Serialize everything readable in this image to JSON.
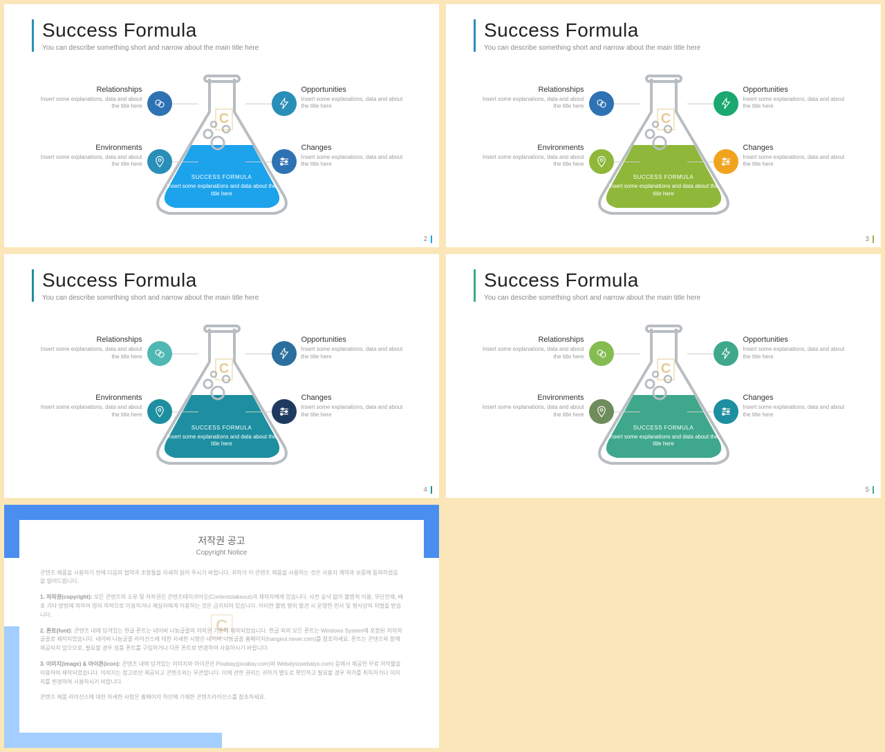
{
  "background_color": "#fae6b8",
  "slides": [
    {
      "page": "2",
      "title": "Success Formula",
      "subtitle": "You can describe something short and narrow about the main title here",
      "accent": "#1ca3ec",
      "header_bar": "#2a8fb8",
      "liquid": "#1ca3ec",
      "flask_stroke": "#b8bdc2",
      "flask_label": "SUCCESS FORMULA",
      "flask_desc": "Insert some explanations and data about the title here",
      "items": {
        "tl": {
          "title": "Relationships",
          "desc": "Insert some explanations, data and about the title here",
          "color": "#2f72b3",
          "icon": "chat"
        },
        "bl": {
          "title": "Environments",
          "desc": "Insert some explanations, data and about the title here",
          "color": "#2a8fb8",
          "icon": "pin"
        },
        "tr": {
          "title": "Opportunities",
          "desc": "Insert some explanations, data and about the title here",
          "color": "#2a8fb8",
          "icon": "bolt"
        },
        "br": {
          "title": "Changes",
          "desc": "Insert some explanations, data and about the title here",
          "color": "#2f72b3",
          "icon": "sliders"
        }
      }
    },
    {
      "page": "3",
      "title": "Success Formula",
      "subtitle": "You can describe something short and narrow about the main title here",
      "accent": "#8fb83a",
      "header_bar": "#2a8fb8",
      "liquid": "#8fb83a",
      "flask_stroke": "#b8bdc2",
      "flask_label": "SUCCESS FORMULA",
      "flask_desc": "Insert some explanations and data about the title here",
      "items": {
        "tl": {
          "title": "Relationships",
          "desc": "Insert some explanations, data and about the title here",
          "color": "#2f72b3",
          "icon": "chat"
        },
        "bl": {
          "title": "Environments",
          "desc": "Insert some explanations, data and about the title here",
          "color": "#8fb83a",
          "icon": "pin"
        },
        "tr": {
          "title": "Opportunities",
          "desc": "Insert some explanations, data and about the title here",
          "color": "#1aa86f",
          "icon": "bolt"
        },
        "br": {
          "title": "Changes",
          "desc": "Insert some explanations, data and about the title here",
          "color": "#f0a41e",
          "icon": "sliders"
        }
      }
    },
    {
      "page": "4",
      "title": "Success Formula",
      "subtitle": "You can describe something short and narrow about the main title here",
      "accent": "#1d8fa0",
      "header_bar": "#1d8fa0",
      "liquid": "#1d8fa0",
      "flask_stroke": "#b8bdc2",
      "flask_label": "SUCCESS FORMULA",
      "flask_desc": "Insert some explanations and data about the title here",
      "items": {
        "tl": {
          "title": "Relationships",
          "desc": "Insert some explanations, data and about the title here",
          "color": "#4fb8b3",
          "icon": "chat"
        },
        "bl": {
          "title": "Environments",
          "desc": "Insert some explanations, data and about the title here",
          "color": "#1d8fa0",
          "icon": "pin"
        },
        "tr": {
          "title": "Opportunities",
          "desc": "Insert some explanations, data and about the title here",
          "color": "#2a6f9e",
          "icon": "bolt"
        },
        "br": {
          "title": "Changes",
          "desc": "Insert some explanations, data and about the title here",
          "color": "#1f3a5f",
          "icon": "sliders"
        }
      }
    },
    {
      "page": "5",
      "title": "Success Formula",
      "subtitle": "You can describe something short and narrow about the main title here",
      "accent": "#3fa88c",
      "header_bar": "#3fa88c",
      "liquid": "#3fa88c",
      "flask_stroke": "#b8bdc2",
      "flask_label": "SUCCESS FORMULA",
      "flask_desc": "Insert some explanations and data about the title here",
      "items": {
        "tl": {
          "title": "Relationships",
          "desc": "Insert some explanations, data and about the title here",
          "color": "#84bc52",
          "icon": "chat"
        },
        "bl": {
          "title": "Environments",
          "desc": "Insert some explanations, data and about the title here",
          "color": "#6f8c5c",
          "icon": "pin"
        },
        "tr": {
          "title": "Opportunities",
          "desc": "Insert some explanations, data and about the title here",
          "color": "#3fa88c",
          "icon": "bolt"
        },
        "br": {
          "title": "Changes",
          "desc": "Insert some explanations, data and about the title here",
          "color": "#1d8fa0",
          "icon": "sliders"
        }
      }
    }
  ],
  "copyright": {
    "title": "저작권 공고",
    "subtitle": "Copyright Notice",
    "border_top": "#4a8ff0",
    "border_bottom": "#a3ceff",
    "p1": "콘텐츠 제품을 사용하기 전에 다음의 협약과 조항들을 자세히 읽어 주시기 바랍니다. 귀하가 이 콘텐츠 제품을 사용하는 것은 사용자 계약과 보증에 동의하셨음을 알려드립니다.",
    "p2h": "1. 저작권(copyright):",
    "p2": " 모든 콘텐츠의 소유 및 저작권은 콘텐츠테이크아웃(Contentstakeout)과 제작자에게 있습니다. 사전 승낙 없이 불법적 이용, 무단전재, 배포 기타 방법에 의하여 영리 목적으로 이용하거나 제삼자에게 이용하는 것은 금지되어 있습니다. 이러한 불법 행위 발견 시 운영한 민사 및 형사상의 처벌을 받습니다.",
    "p3h": "2. 폰트(font):",
    "p3": " 콘텐츠 내에 담겨있는 한글 폰트는 네이버 나눔글꼴의 저작권 기준에 제작되었습니다. 한글 외의 모든 폰트는 Windows System에 포함된 저작의 글꼴로 제작되었습니다. 네이버 나눔글꼴 라이선스에 대한 자세한 사항은 네이버 나눔글꼴 홈페이지(hangeul.naver.com)를 참조하세요. 폰트는 콘텐츠와 함께 제공되지 않으므로, 필요할 경우 정품 폰트를 구입하거나 다른 폰트로 변경하여 사용하시기 바랍니다.",
    "p4h": "3. 이미지(image) & 아이콘(icon):",
    "p4": " 콘텐츠 내에 담겨있는 이미지와 아이콘은 Pixabay(pixabay.com)와 Webalys(webalys.com) 등에서 제공한 무료 저작물을 이용하여 제작되었습니다. 이미지는 참고로만 제공되고 콘텐츠와는 무관합니다. 이에 관한 권리는 귀하가 별도로 확인하고 필요할 경우 허가를 취득하거나 이미지를 변경하여 사용하시기 바랍니다.",
    "p5": "콘텐츠 제품 라이선스에 대한 자세한 사항은 홈페이지 하단에 기재한 콘텐츠라이선스를 참조하세요."
  },
  "watermark": "C"
}
